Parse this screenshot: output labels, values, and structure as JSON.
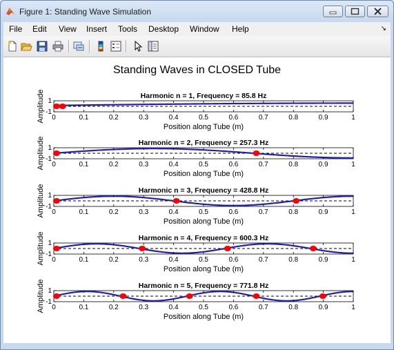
{
  "window": {
    "title": "Figure 1: Standing Wave Simulation",
    "icon": "matlab-icon",
    "controls": [
      "minimize-icon",
      "maximize-icon",
      "close-icon"
    ]
  },
  "menu": {
    "items": [
      "File",
      "Edit",
      "View",
      "Insert",
      "Tools",
      "Desktop",
      "Window",
      "Help"
    ],
    "overflow_glyph": "↘"
  },
  "toolbar": {
    "buttons": [
      "new-figure-icon",
      "open-file-icon",
      "save-icon",
      "print-icon",
      "link-icon",
      "colorbar-icon",
      "legend-icon",
      "pointer-icon",
      "property-editor-icon"
    ]
  },
  "figure": {
    "title": "Standing Waves in CLOSED Tube"
  },
  "chart_data": [
    {
      "type": "line",
      "title": "Harmonic n = 1, Frequency = 85.8 Hz",
      "xlabel": "Position along Tube (m)",
      "ylabel": "Amplitude",
      "xlim": [
        0,
        1
      ],
      "ylim": [
        -1,
        1
      ],
      "xticks": [
        "0",
        "0.1",
        "0.2",
        "0.3",
        "0.4",
        "0.5",
        "0.6",
        "0.7",
        "0.8",
        "0.9",
        "1"
      ],
      "yticks": [
        "-1",
        "1"
      ],
      "harmonic": 1,
      "frequency_hz": 85.8,
      "nodes": [
        0,
        0.02
      ],
      "baseline": 0,
      "line_color": "#1f1fb4",
      "node_color": "#ff0000"
    },
    {
      "type": "line",
      "title": "Harmonic n = 2, Frequency = 257.3 Hz",
      "xlabel": "Position along Tube (m)",
      "ylabel": "Amplitude",
      "xlim": [
        0,
        1
      ],
      "ylim": [
        -1,
        1
      ],
      "xticks": [
        "0",
        "0.1",
        "0.2",
        "0.3",
        "0.4",
        "0.5",
        "0.6",
        "0.7",
        "0.8",
        "0.9",
        "1"
      ],
      "yticks": [
        "-1",
        "1"
      ],
      "harmonic": 2,
      "frequency_hz": 257.3,
      "nodes": [
        0,
        0.667
      ],
      "baseline": 0,
      "line_color": "#1f1fb4",
      "node_color": "#ff0000"
    },
    {
      "type": "line",
      "title": "Harmonic n = 3, Frequency = 428.8 Hz",
      "xlabel": "Position along Tube (m)",
      "ylabel": "Amplitude",
      "xlim": [
        0,
        1
      ],
      "ylim": [
        -1,
        1
      ],
      "xticks": [
        "0",
        "0.1",
        "0.2",
        "0.3",
        "0.4",
        "0.5",
        "0.6",
        "0.7",
        "0.8",
        "0.9",
        "1"
      ],
      "yticks": [
        "-1",
        "1"
      ],
      "harmonic": 3,
      "frequency_hz": 428.8,
      "nodes": [
        0,
        0.4,
        0.8
      ],
      "baseline": 0,
      "line_color": "#1f1fb4",
      "node_color": "#ff0000"
    },
    {
      "type": "line",
      "title": "Harmonic n = 4, Frequency = 600.3 Hz",
      "xlabel": "Position along Tube (m)",
      "ylabel": "Amplitude",
      "xlim": [
        0,
        1
      ],
      "ylim": [
        -1,
        1
      ],
      "xticks": [
        "0",
        "0.1",
        "0.2",
        "0.3",
        "0.4",
        "0.5",
        "0.6",
        "0.7",
        "0.8",
        "0.9",
        "1"
      ],
      "yticks": [
        "-1",
        "1"
      ],
      "harmonic": 4,
      "frequency_hz": 600.3,
      "nodes": [
        0,
        0.286,
        0.571,
        0.857
      ],
      "baseline": 0,
      "line_color": "#1f1fb4",
      "node_color": "#ff0000"
    },
    {
      "type": "line",
      "title": "Harmonic n = 5, Frequency = 771.8 Hz",
      "xlabel": "Position along Tube (m)",
      "ylabel": "Amplitude",
      "xlim": [
        0,
        1
      ],
      "ylim": [
        -1,
        1
      ],
      "xticks": [
        "0",
        "0.1",
        "0.2",
        "0.3",
        "0.4",
        "0.5",
        "0.6",
        "0.7",
        "0.8",
        "0.9",
        "1"
      ],
      "yticks": [
        "-1",
        "1"
      ],
      "harmonic": 5,
      "frequency_hz": 771.8,
      "nodes": [
        0,
        0.222,
        0.444,
        0.667,
        0.889
      ],
      "baseline": 0,
      "line_color": "#1f1fb4",
      "node_color": "#ff0000"
    }
  ]
}
